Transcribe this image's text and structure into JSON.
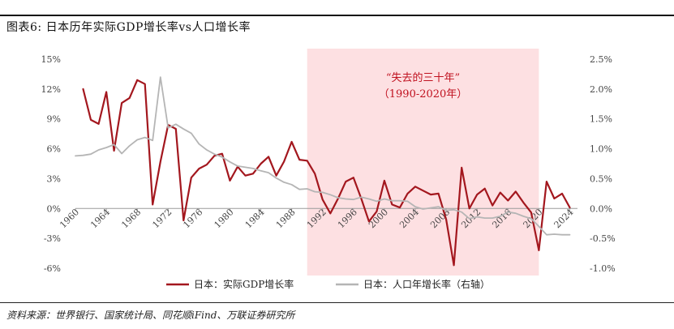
{
  "page": {
    "title": "图表6:  日本历年实际GDP增长率vs人口增长率",
    "source": "资料来源：世界银行、国家统计局、同花顺iFind、万联证券研究所"
  },
  "chart_data": {
    "type": "line",
    "title": "图表6:  日本历年实际GDP增长率vs人口增长率",
    "shaded_region": {
      "x_start": 1990,
      "x_end": 2020,
      "label_line1": "“失去的三十年”",
      "label_line2": "（1990-2020年）",
      "color": "#fde0e2",
      "label_color": "#c0111f"
    },
    "x_ticks": [
      1960,
      1964,
      1968,
      1972,
      1976,
      1980,
      1984,
      1988,
      1992,
      1996,
      2000,
      2004,
      2008,
      2012,
      2016,
      2020,
      2024
    ],
    "x_range": [
      1960,
      2025
    ],
    "y_left": {
      "range": [
        -6,
        15
      ],
      "ticks": [
        15,
        12,
        9,
        6,
        3,
        0,
        -3,
        -6
      ],
      "tick_labels": [
        "15%",
        "12%",
        "9%",
        "6%",
        "3%",
        "0%",
        "-3%",
        "-6%"
      ]
    },
    "y_right": {
      "range": [
        -1.0,
        2.5
      ],
      "ticks": [
        2.5,
        2.0,
        1.5,
        1.0,
        0.5,
        0.0,
        -0.5,
        -1.0
      ],
      "tick_labels": [
        "2.5%",
        "2.0%",
        "1.5%",
        "1.0%",
        "0.5%",
        "0.0%",
        "-0.5%",
        "-1.0%"
      ]
    },
    "grid": false,
    "legend_position": "bottom",
    "series": [
      {
        "name": "日本：实际GDP增长率",
        "axis": "left",
        "color": "#a3171e",
        "x": [
          1961,
          1962,
          1963,
          1964,
          1965,
          1966,
          1967,
          1968,
          1969,
          1970,
          1971,
          1972,
          1973,
          1974,
          1975,
          1976,
          1977,
          1978,
          1979,
          1980,
          1981,
          1982,
          1983,
          1984,
          1985,
          1986,
          1987,
          1988,
          1989,
          1990,
          1991,
          1992,
          1993,
          1994,
          1995,
          1996,
          1997,
          1998,
          1999,
          2000,
          2001,
          2002,
          2003,
          2004,
          2005,
          2006,
          2007,
          2008,
          2009,
          2010,
          2011,
          2012,
          2013,
          2014,
          2015,
          2016,
          2017,
          2018,
          2019,
          2020,
          2021,
          2022,
          2023,
          2024
        ],
        "values": [
          12.0,
          8.9,
          8.5,
          11.7,
          5.8,
          10.6,
          11.1,
          12.9,
          12.5,
          0.4,
          4.7,
          8.4,
          8.0,
          -1.2,
          3.1,
          4.0,
          4.4,
          5.3,
          5.5,
          2.8,
          4.2,
          3.3,
          3.5,
          4.5,
          5.2,
          3.3,
          4.7,
          6.7,
          4.9,
          4.8,
          3.5,
          0.9,
          -0.5,
          1.0,
          2.7,
          3.1,
          1.0,
          -1.3,
          -0.3,
          2.8,
          0.4,
          0.1,
          1.5,
          2.2,
          1.8,
          1.4,
          1.5,
          -1.1,
          -5.7,
          4.1,
          0.0,
          1.4,
          2.0,
          0.3,
          1.6,
          0.8,
          1.7,
          0.6,
          -0.4,
          -4.2,
          2.7,
          1.0,
          1.5,
          0.1
        ]
      },
      {
        "name": "日本：人口年增长率（右轴）",
        "axis": "right",
        "color": "#b5b5b5",
        "x": [
          1960,
          1961,
          1962,
          1963,
          1964,
          1965,
          1966,
          1967,
          1968,
          1969,
          1970,
          1971,
          1972,
          1973,
          1974,
          1975,
          1976,
          1977,
          1978,
          1979,
          1980,
          1981,
          1982,
          1983,
          1984,
          1985,
          1986,
          1987,
          1988,
          1989,
          1990,
          1991,
          1992,
          1993,
          1994,
          1995,
          1996,
          1997,
          1998,
          1999,
          2000,
          2001,
          2002,
          2003,
          2004,
          2005,
          2006,
          2007,
          2008,
          2009,
          2010,
          2011,
          2012,
          2013,
          2014,
          2015,
          2016,
          2017,
          2018,
          2019,
          2020,
          2021,
          2022,
          2023,
          2024
        ],
        "values": [
          0.88,
          0.89,
          0.91,
          0.98,
          1.02,
          1.07,
          0.92,
          1.05,
          1.15,
          1.19,
          1.14,
          2.2,
          1.35,
          1.41,
          1.33,
          1.26,
          1.08,
          0.98,
          0.91,
          0.86,
          0.78,
          0.71,
          0.69,
          0.67,
          0.63,
          0.6,
          0.51,
          0.44,
          0.4,
          0.32,
          0.33,
          0.28,
          0.27,
          0.23,
          0.18,
          0.16,
          0.15,
          0.19,
          0.16,
          0.12,
          0.16,
          0.13,
          0.13,
          0.12,
          0.03,
          -0.01,
          0.01,
          0.03,
          -0.03,
          -0.02,
          -0.06,
          -0.17,
          -0.14,
          -0.16,
          -0.16,
          -0.13,
          -0.06,
          -0.08,
          -0.13,
          -0.17,
          -0.3,
          -0.44,
          -0.43,
          -0.44,
          -0.44
        ]
      }
    ]
  }
}
